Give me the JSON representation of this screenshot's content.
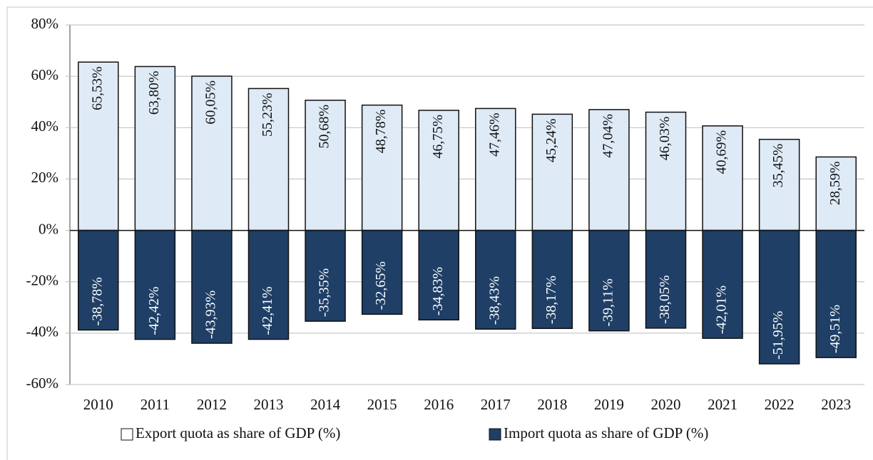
{
  "chart_data": {
    "type": "bar",
    "categories": [
      "2010",
      "2011",
      "2012",
      "2013",
      "2014",
      "2015",
      "2016",
      "2017",
      "2018",
      "2019",
      "2020",
      "2021",
      "2022",
      "2023"
    ],
    "series": [
      {
        "name": "Export quota as share of GDP (%)",
        "color": "#deeaf6",
        "values": [
          65.53,
          63.8,
          60.05,
          55.23,
          50.68,
          48.78,
          46.75,
          47.46,
          45.24,
          47.04,
          46.03,
          40.69,
          35.45,
          28.59
        ],
        "value_labels": [
          "65,53%",
          "63,80%",
          "60,05%",
          "55,23%",
          "50,68%",
          "48,78%",
          "46,75%",
          "47,46%",
          "45,24%",
          "47,04%",
          "46,03%",
          "40,69%",
          "35,45%",
          "28,59%"
        ]
      },
      {
        "name": "Import quota as share of GDP (%)",
        "color": "#1f3f66",
        "values": [
          -38.78,
          -42.42,
          -43.93,
          -42.41,
          -35.35,
          -32.65,
          -34.83,
          -38.43,
          -38.17,
          -39.11,
          -38.05,
          -42.01,
          -51.95,
          -49.51
        ],
        "value_labels": [
          "-38,78%",
          "-42,42%",
          "-43,93%",
          "-42,41%",
          "-35,35%",
          "-32,65%",
          "-34,83%",
          "-38,43%",
          "-38,17%",
          "-39,11%",
          "-38,05%",
          "-42,01%",
          "-51,95%",
          "-49,51%"
        ]
      }
    ],
    "ylim": [
      -60,
      80
    ],
    "yticks": [
      {
        "value": -60,
        "label": "-60%"
      },
      {
        "value": -40,
        "label": "-40%"
      },
      {
        "value": -20,
        "label": "-20%"
      },
      {
        "value": 0,
        "label": "0%"
      },
      {
        "value": 20,
        "label": "20%"
      },
      {
        "value": 40,
        "label": "40%"
      },
      {
        "value": 60,
        "label": "60%"
      },
      {
        "value": 80,
        "label": "80%"
      }
    ],
    "grid": true
  }
}
